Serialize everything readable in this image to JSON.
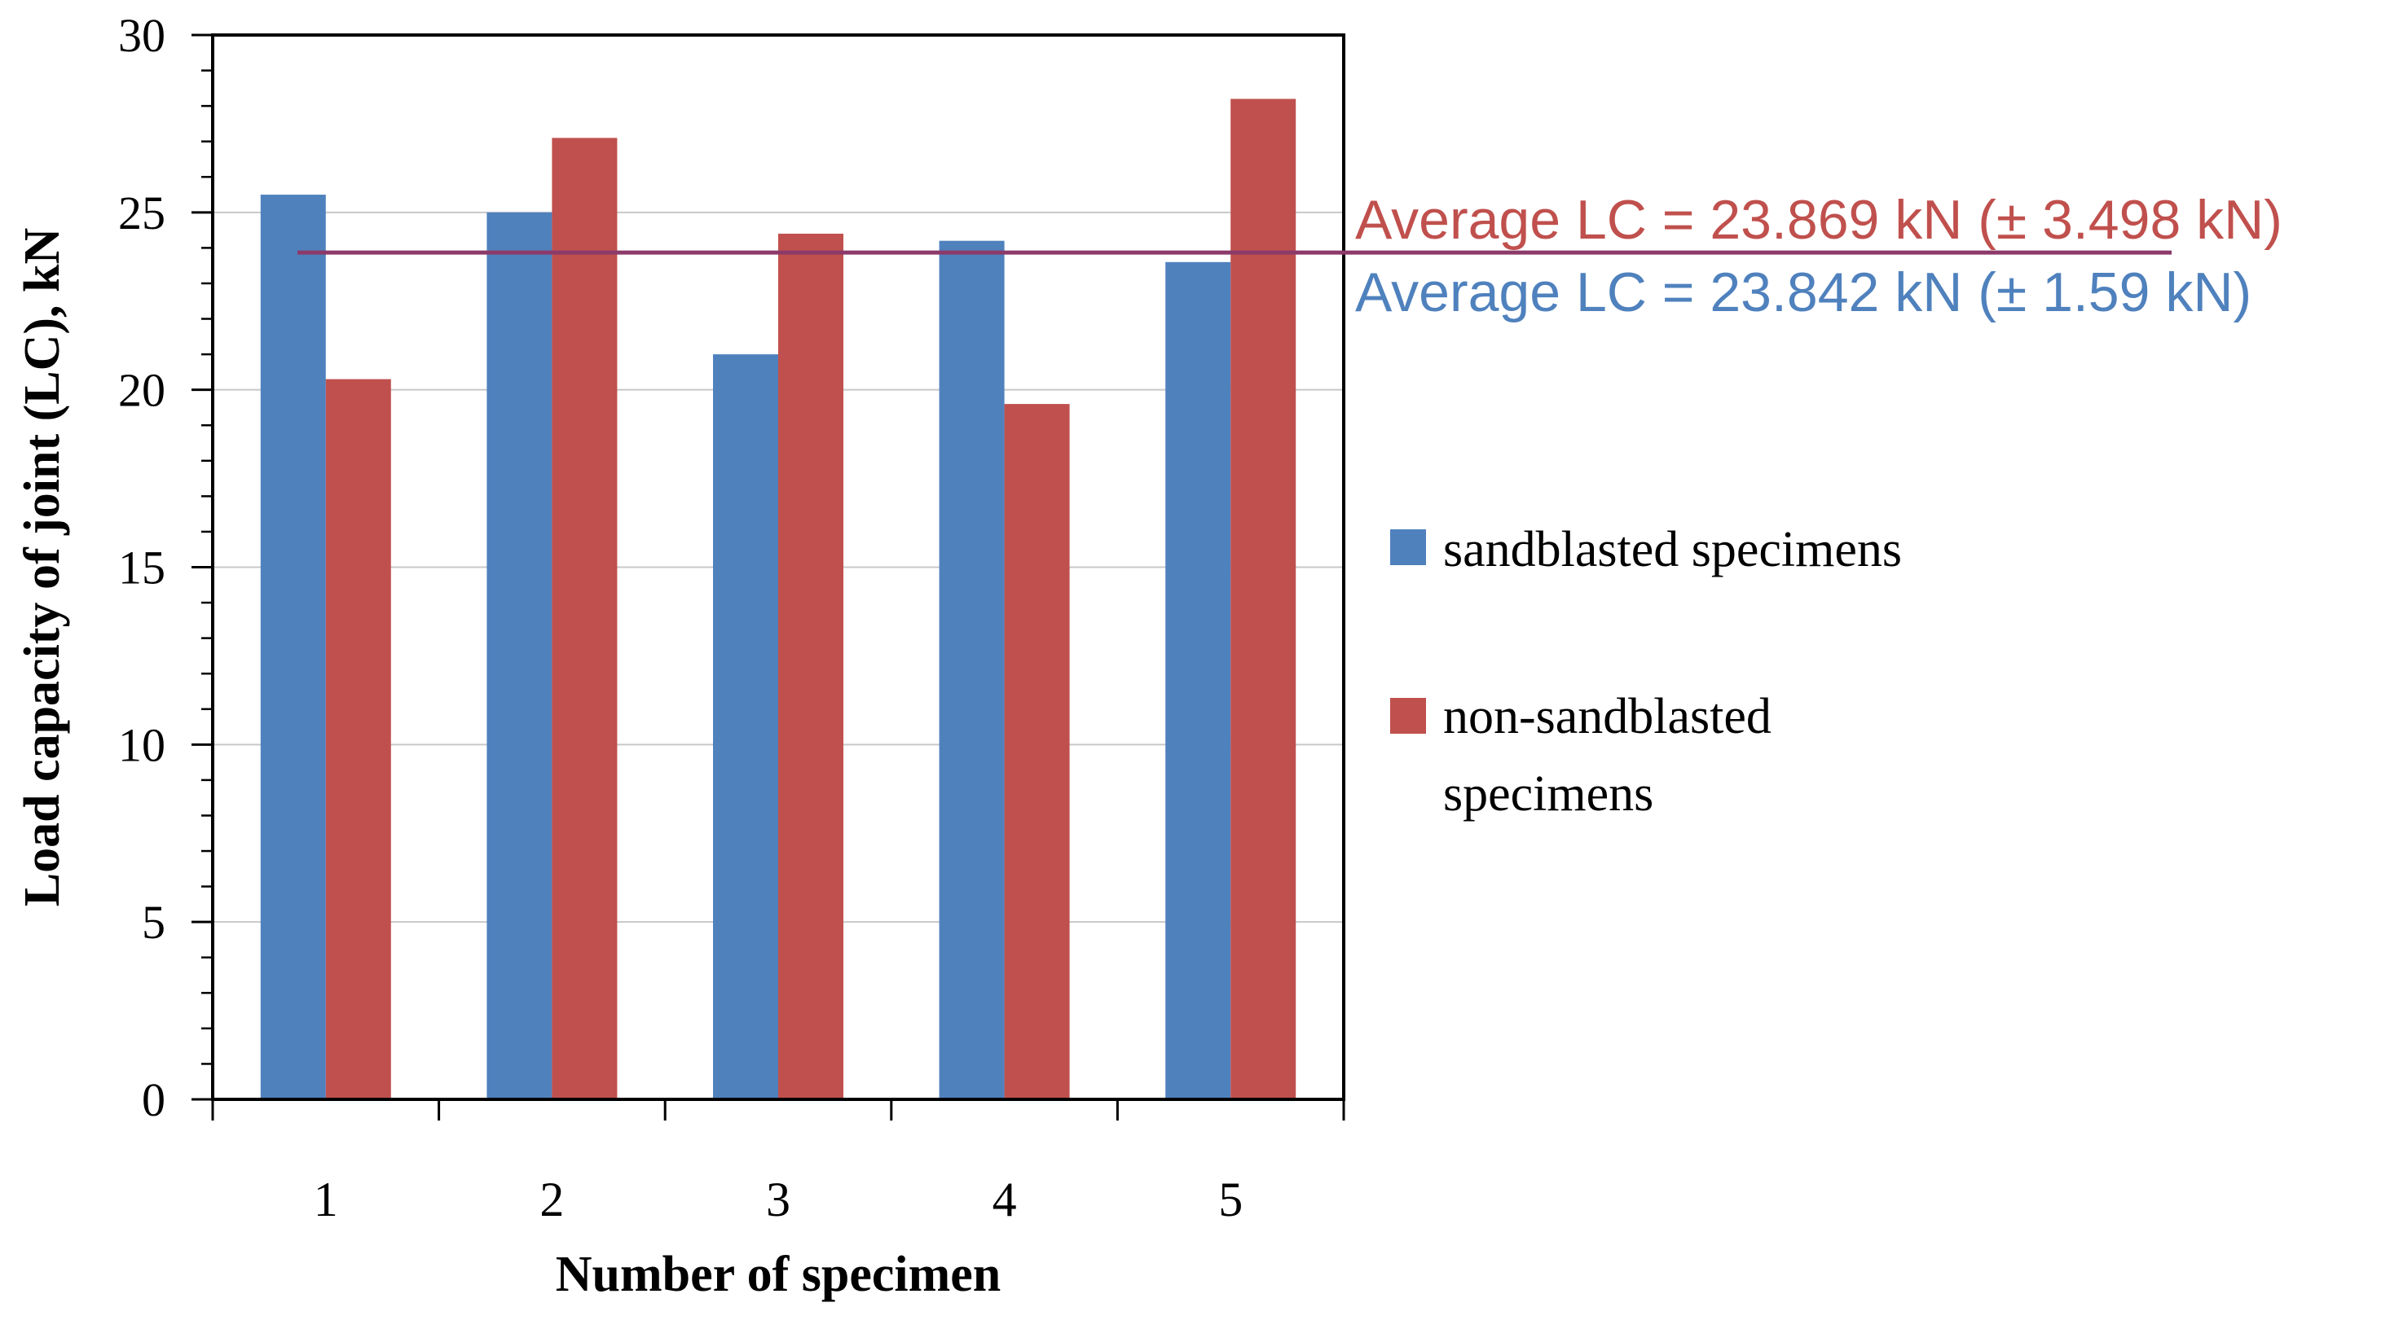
{
  "chart_data": {
    "type": "bar",
    "title": "",
    "xlabel": "Number of specimen",
    "ylabel": "Load capacity of joint (LC), kN",
    "categories": [
      "1",
      "2",
      "3",
      "4",
      "5"
    ],
    "series": [
      {
        "name": "sandblasted specimens",
        "color": "#4f81bd",
        "values": [
          25.5,
          25.0,
          21.0,
          24.2,
          23.6
        ]
      },
      {
        "name": "non-sandblasted specimens",
        "color": "#c0504d",
        "values": [
          20.3,
          27.1,
          24.4,
          19.6,
          28.2
        ]
      }
    ],
    "ylim": [
      0,
      30
    ],
    "yticks": [
      "0",
      "5",
      "10",
      "15",
      "20",
      "25",
      "30"
    ],
    "grid": true,
    "legend_position": "right",
    "average_lines": [
      {
        "label": "Average LC = 23.869 kN (± 3.498 kN)",
        "value": 23.869,
        "color": "#c0504d",
        "line_color": "#8c3a6a"
      },
      {
        "label": "Average LC = 23.842 kN (± 1.59 kN)",
        "value": 23.842,
        "color": "#4f81bd"
      }
    ]
  },
  "legend": {
    "items": [
      {
        "lines": [
          "sandblasted specimens"
        ]
      },
      {
        "lines": [
          "non-sandblasted",
          "specimens"
        ]
      }
    ]
  }
}
